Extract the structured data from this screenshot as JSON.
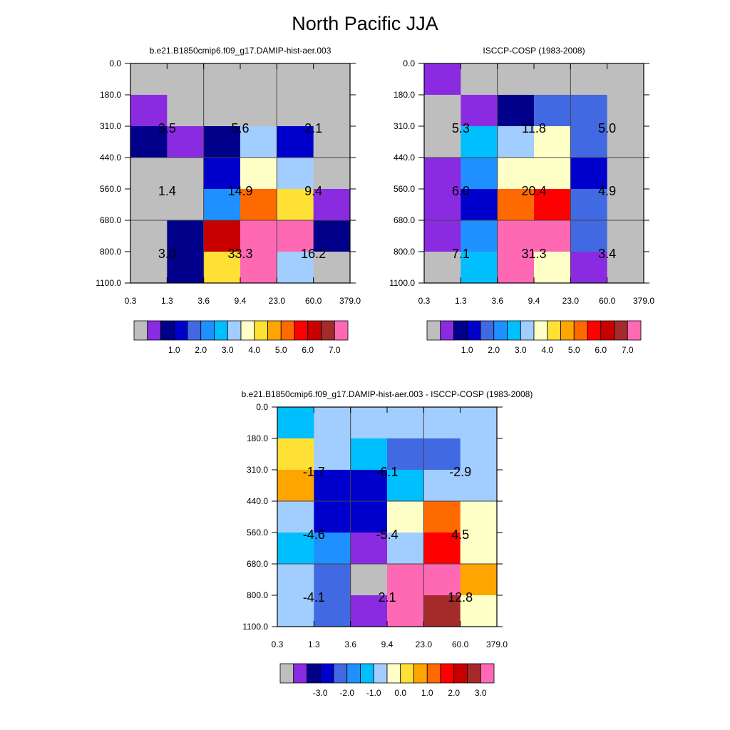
{
  "title": "North Pacific JJA",
  "colors": {
    "palette": [
      "#bebebe",
      "#8a2be2",
      "#00008b",
      "#0000cd",
      "#4169e1",
      "#1e90ff",
      "#00bfff",
      "#a2cdff",
      "#ffffc8",
      "#ffe135",
      "#ffa500",
      "#ff6a00",
      "#ff0000",
      "#c80000",
      "#a52a2a",
      "#ff69b4"
    ],
    "frame": "#000000",
    "gridline": "#444444"
  },
  "chart_data": [
    {
      "type": "heatmap",
      "title": "b.e21.B1850cmip6.f09_g17.DAMIP-hist-aer.003",
      "xlabel": "",
      "ylabel": "",
      "x_tick_labels": [
        "0.3",
        "1.3",
        "3.6",
        "9.4",
        "23.0",
        "60.0",
        "379.0"
      ],
      "y_tick_labels": [
        "0.0",
        "180.0",
        "310.0",
        "440.0",
        "560.0",
        "680.0",
        "800.0",
        "1100.0"
      ],
      "grid_color_index": [
        [
          0,
          0,
          0,
          0,
          0,
          0
        ],
        [
          1,
          0,
          0,
          0,
          0,
          0
        ],
        [
          2,
          1,
          2,
          7,
          3,
          0
        ],
        [
          0,
          0,
          3,
          8,
          7,
          0
        ],
        [
          0,
          0,
          5,
          11,
          9,
          1
        ],
        [
          0,
          2,
          13,
          15,
          15,
          2
        ],
        [
          0,
          2,
          9,
          15,
          7,
          0
        ]
      ],
      "annotations": [
        {
          "col": 0,
          "row": 1,
          "text": "3.5"
        },
        {
          "col": 1,
          "row": 1,
          "text": "5.6"
        },
        {
          "col": 2,
          "row": 1,
          "text": "2.1"
        },
        {
          "col": 0,
          "row": 2,
          "text": "1.4"
        },
        {
          "col": 1,
          "row": 2,
          "text": "14.9"
        },
        {
          "col": 2,
          "row": 2,
          "text": "9.4"
        },
        {
          "col": 0,
          "row": 3,
          "text": "3.0"
        },
        {
          "col": 1,
          "row": 3,
          "text": "33.3"
        },
        {
          "col": 2,
          "row": 3,
          "text": "16.2"
        }
      ],
      "colorbar_labels": [
        "1.0",
        "2.0",
        "3.0",
        "4.0",
        "5.0",
        "6.0",
        "7.0"
      ]
    },
    {
      "type": "heatmap",
      "title": "ISCCP-COSP (1983-2008)",
      "xlabel": "",
      "ylabel": "",
      "x_tick_labels": [
        "0.3",
        "1.3",
        "3.6",
        "9.4",
        "23.0",
        "60.0",
        "379.0"
      ],
      "y_tick_labels": [
        "0.0",
        "180.0",
        "310.0",
        "440.0",
        "560.0",
        "680.0",
        "800.0",
        "1100.0"
      ],
      "grid_color_index": [
        [
          1,
          0,
          0,
          0,
          0,
          0
        ],
        [
          0,
          1,
          2,
          4,
          4,
          0
        ],
        [
          0,
          6,
          7,
          8,
          4,
          0
        ],
        [
          1,
          5,
          8,
          8,
          3,
          0
        ],
        [
          1,
          3,
          11,
          12,
          4,
          0
        ],
        [
          1,
          5,
          15,
          15,
          4,
          0
        ],
        [
          0,
          6,
          15,
          8,
          1,
          0
        ]
      ],
      "annotations": [
        {
          "col": 0,
          "row": 1,
          "text": "5.3"
        },
        {
          "col": 1,
          "row": 1,
          "text": "11.8"
        },
        {
          "col": 2,
          "row": 1,
          "text": "5.0"
        },
        {
          "col": 0,
          "row": 2,
          "text": "6.0"
        },
        {
          "col": 1,
          "row": 2,
          "text": "20.4"
        },
        {
          "col": 2,
          "row": 2,
          "text": "4.9"
        },
        {
          "col": 0,
          "row": 3,
          "text": "7.1"
        },
        {
          "col": 1,
          "row": 3,
          "text": "31.3"
        },
        {
          "col": 2,
          "row": 3,
          "text": "3.4"
        }
      ],
      "colorbar_labels": [
        "1.0",
        "2.0",
        "3.0",
        "4.0",
        "5.0",
        "6.0",
        "7.0"
      ]
    },
    {
      "type": "heatmap",
      "title": "b.e21.B1850cmip6.f09_g17.DAMIP-hist-aer.003 - ISCCP-COSP (1983-2008)",
      "xlabel": "",
      "ylabel": "",
      "x_tick_labels": [
        "0.3",
        "1.3",
        "3.6",
        "9.4",
        "23.0",
        "60.0",
        "379.0"
      ],
      "y_tick_labels": [
        "0.0",
        "180.0",
        "310.0",
        "440.0",
        "560.0",
        "680.0",
        "800.0",
        "1100.0"
      ],
      "grid_color_index": [
        [
          6,
          7,
          7,
          7,
          7,
          7
        ],
        [
          9,
          7,
          6,
          4,
          4,
          7
        ],
        [
          10,
          3,
          3,
          6,
          7,
          7
        ],
        [
          7,
          3,
          3,
          8,
          11,
          8
        ],
        [
          6,
          5,
          1,
          7,
          12,
          8
        ],
        [
          7,
          4,
          0,
          15,
          15,
          10
        ],
        [
          7,
          4,
          1,
          15,
          14,
          8
        ]
      ],
      "annotations": [
        {
          "col": 0,
          "row": 1,
          "text": "-1.7"
        },
        {
          "col": 1,
          "row": 1,
          "text": "-6.1"
        },
        {
          "col": 2,
          "row": 1,
          "text": "-2.9"
        },
        {
          "col": 0,
          "row": 2,
          "text": "-4.6"
        },
        {
          "col": 1,
          "row": 2,
          "text": "-5.4"
        },
        {
          "col": 2,
          "row": 2,
          "text": "4.5"
        },
        {
          "col": 0,
          "row": 3,
          "text": "-4.1"
        },
        {
          "col": 1,
          "row": 3,
          "text": "2.1"
        },
        {
          "col": 2,
          "row": 3,
          "text": "12.8"
        }
      ],
      "colorbar_labels": [
        "-3.0",
        "-2.0",
        "-1.0",
        "0.0",
        "1.0",
        "2.0",
        "3.0"
      ]
    }
  ]
}
